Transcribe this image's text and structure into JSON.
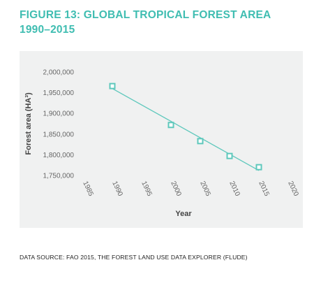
{
  "figure": {
    "title_line1": "FIGURE 13: GLOBAL TROPICAL FOREST AREA",
    "title_line2": "1990–2015",
    "source": "DATA SOURCE: FAO 2015, THE FOREST LAND USE DATA EXPLORER (FLUDE)"
  },
  "colors": {
    "title": "#3fbdb1",
    "series": "#5ec8bc",
    "panel": "#f0f1f1"
  },
  "chart_data": {
    "type": "scatter",
    "title": "FIGURE 13: GLOBAL TROPICAL FOREST AREA 1990–2015",
    "xlabel": "Year",
    "ylabel": "Forest area (HA³)",
    "xlim": [
      1985,
      2020
    ],
    "ylim": [
      1750000,
      2000000
    ],
    "x_ticks": [
      1985,
      1990,
      1995,
      2000,
      2005,
      2010,
      2015,
      2020
    ],
    "y_ticks": [
      1750000,
      1800000,
      1850000,
      1900000,
      1950000,
      2000000
    ],
    "y_tick_labels": [
      "1,750,000",
      "1,800,000",
      "1,850,000",
      "1,900,000",
      "1,950,000",
      "2,000,000"
    ],
    "grid": false,
    "legend": "none",
    "series": [
      {
        "marker": "square",
        "x": [
          1990,
          2000,
          2005,
          2010,
          2015
        ],
        "y": [
          1966000,
          1872000,
          1833000,
          1797000,
          1770000
        ]
      }
    ],
    "trendline": {
      "x": [
        1990,
        2015
      ],
      "y": [
        1960000,
        1762000
      ]
    }
  }
}
